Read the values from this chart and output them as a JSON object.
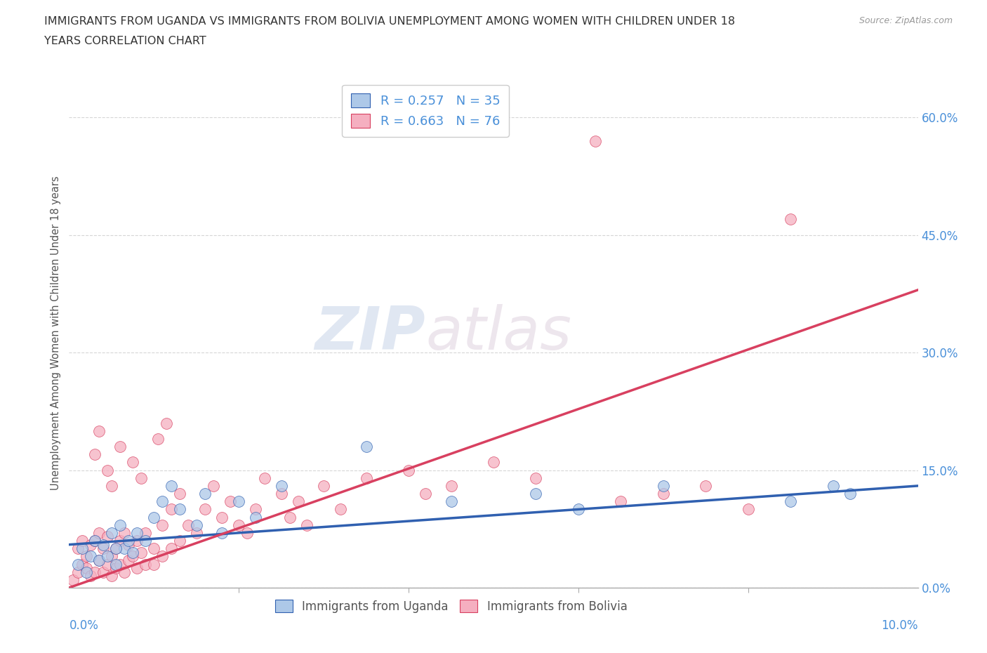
{
  "title_line1": "IMMIGRANTS FROM UGANDA VS IMMIGRANTS FROM BOLIVIA UNEMPLOYMENT AMONG WOMEN WITH CHILDREN UNDER 18",
  "title_line2": "YEARS CORRELATION CHART",
  "source": "Source: ZipAtlas.com",
  "ylabel": "Unemployment Among Women with Children Under 18 years",
  "ytick_vals": [
    0.0,
    15.0,
    30.0,
    45.0,
    60.0
  ],
  "xrange": [
    0.0,
    10.0
  ],
  "yrange": [
    0.0,
    65.0
  ],
  "uganda_R": 0.257,
  "uganda_N": 35,
  "bolivia_R": 0.663,
  "bolivia_N": 76,
  "uganda_color": "#adc8e8",
  "bolivia_color": "#f5afc0",
  "uganda_line_color": "#3060b0",
  "bolivia_line_color": "#d84060",
  "legend_label_uganda": "R = 0.257   N = 35",
  "legend_label_bolivia": "R = 0.663   N = 76",
  "legend_bottom_uganda": "Immigrants from Uganda",
  "legend_bottom_bolivia": "Immigrants from Bolivia",
  "watermark_zip": "ZIP",
  "watermark_atlas": "atlas",
  "uganda_line_x0": 0.0,
  "uganda_line_y0": 5.5,
  "uganda_line_x1": 10.0,
  "uganda_line_y1": 13.0,
  "bolivia_line_x0": 0.0,
  "bolivia_line_y0": 0.0,
  "bolivia_line_x1": 10.0,
  "bolivia_line_y1": 38.0,
  "uganda_scatter_x": [
    0.1,
    0.15,
    0.2,
    0.25,
    0.3,
    0.35,
    0.4,
    0.45,
    0.5,
    0.55,
    0.6,
    0.65,
    0.7,
    0.75,
    0.8,
    0.9,
    1.0,
    1.1,
    1.2,
    1.3,
    1.5,
    1.6,
    1.8,
    2.0,
    2.2,
    2.5,
    3.5,
    4.5,
    5.5,
    6.0,
    7.0,
    8.5,
    9.0,
    9.2,
    0.55
  ],
  "uganda_scatter_y": [
    3.0,
    5.0,
    2.0,
    4.0,
    6.0,
    3.5,
    5.5,
    4.0,
    7.0,
    3.0,
    8.0,
    5.0,
    6.0,
    4.5,
    7.0,
    6.0,
    9.0,
    11.0,
    13.0,
    10.0,
    8.0,
    12.0,
    7.0,
    11.0,
    9.0,
    13.0,
    18.0,
    11.0,
    12.0,
    10.0,
    13.0,
    11.0,
    13.0,
    12.0,
    5.0
  ],
  "bolivia_scatter_x": [
    0.05,
    0.1,
    0.1,
    0.15,
    0.15,
    0.2,
    0.2,
    0.25,
    0.25,
    0.3,
    0.3,
    0.35,
    0.35,
    0.4,
    0.4,
    0.45,
    0.45,
    0.5,
    0.5,
    0.55,
    0.55,
    0.6,
    0.6,
    0.65,
    0.65,
    0.7,
    0.7,
    0.75,
    0.8,
    0.8,
    0.85,
    0.9,
    0.9,
    1.0,
    1.0,
    1.1,
    1.1,
    1.2,
    1.2,
    1.3,
    1.3,
    1.4,
    1.5,
    1.6,
    1.7,
    1.8,
    1.9,
    2.0,
    2.1,
    2.2,
    2.3,
    2.5,
    2.6,
    2.7,
    2.8,
    3.0,
    3.2,
    3.5,
    4.0,
    4.2,
    4.5,
    5.0,
    5.5,
    6.5,
    7.0,
    7.5,
    8.0,
    0.3,
    0.35,
    0.45,
    0.5,
    0.6,
    0.75,
    0.85,
    1.05,
    1.15
  ],
  "bolivia_scatter_y": [
    1.0,
    2.0,
    5.0,
    3.0,
    6.0,
    2.5,
    4.0,
    1.5,
    5.5,
    2.0,
    6.0,
    3.5,
    7.0,
    2.0,
    5.0,
    3.0,
    6.5,
    1.5,
    4.0,
    2.5,
    5.0,
    3.0,
    6.0,
    2.0,
    7.0,
    3.5,
    5.5,
    4.0,
    2.5,
    6.0,
    4.5,
    3.0,
    7.0,
    3.0,
    5.0,
    4.0,
    8.0,
    5.0,
    10.0,
    6.0,
    12.0,
    8.0,
    7.0,
    10.0,
    13.0,
    9.0,
    11.0,
    8.0,
    7.0,
    10.0,
    14.0,
    12.0,
    9.0,
    11.0,
    8.0,
    13.0,
    10.0,
    14.0,
    15.0,
    12.0,
    13.0,
    16.0,
    14.0,
    11.0,
    12.0,
    13.0,
    10.0,
    17.0,
    20.0,
    15.0,
    13.0,
    18.0,
    16.0,
    14.0,
    19.0,
    21.0
  ]
}
